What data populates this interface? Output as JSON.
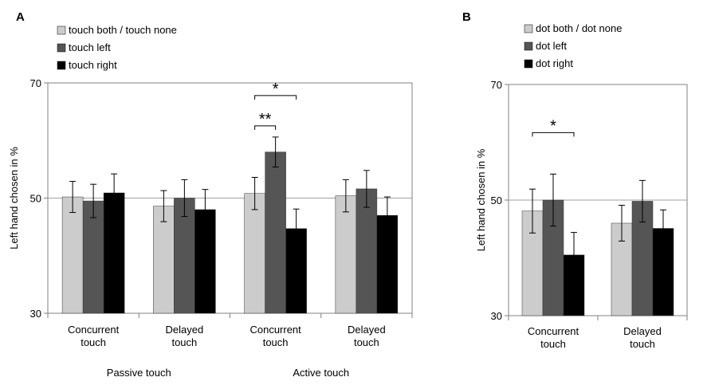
{
  "chart_data": [
    {
      "panel": "A",
      "type": "bar",
      "ylabel": "Left hand chosen in %",
      "ylim": [
        30,
        70
      ],
      "yticks": [
        30,
        50,
        70
      ],
      "reference_line": 50,
      "legend": [
        {
          "label": "touch both / touch none",
          "color": "#cccccc"
        },
        {
          "label": "touch left",
          "color": "#555555"
        },
        {
          "label": "touch right",
          "color": "#000000"
        }
      ],
      "categories": [
        [
          "Concurrent",
          "touch"
        ],
        [
          "Delayed",
          "touch"
        ],
        [
          "Concurrent",
          "touch"
        ],
        [
          "Delayed",
          "touch"
        ]
      ],
      "groups": [
        "Passive touch",
        "Active touch"
      ],
      "series": [
        {
          "name": "touch both / touch none",
          "color": "#cccccc",
          "values": [
            50.2,
            48.6,
            50.8,
            50.4
          ],
          "errors": [
            2.7,
            2.7,
            2.8,
            2.8
          ]
        },
        {
          "name": "touch left",
          "color": "#555555",
          "values": [
            49.5,
            50.0,
            58.0,
            51.6
          ],
          "errors": [
            2.9,
            3.2,
            2.6,
            3.2
          ]
        },
        {
          "name": "touch right",
          "color": "#000000",
          "values": [
            50.9,
            48.0,
            44.7,
            47.0
          ],
          "errors": [
            3.3,
            3.5,
            3.4,
            3.2
          ]
        }
      ],
      "significance": [
        {
          "label": "**",
          "category": 2,
          "from": 0,
          "to": 1
        },
        {
          "label": "*",
          "category": 2,
          "from": 0,
          "to": 2
        }
      ]
    },
    {
      "panel": "B",
      "type": "bar",
      "ylabel": "Left hand chosen in %",
      "ylim": [
        30,
        70
      ],
      "yticks": [
        30,
        50,
        70
      ],
      "reference_line": 50,
      "legend": [
        {
          "label": "dot both / dot none",
          "color": "#cccccc"
        },
        {
          "label": "dot left",
          "color": "#555555"
        },
        {
          "label": "dot right",
          "color": "#000000"
        }
      ],
      "categories": [
        [
          "Concurrent",
          "touch"
        ],
        [
          "Delayed",
          "touch"
        ]
      ],
      "groups": [],
      "series": [
        {
          "name": "dot both / dot none",
          "color": "#cccccc",
          "values": [
            48.1,
            46.0
          ],
          "errors": [
            3.8,
            3.1
          ]
        },
        {
          "name": "dot left",
          "color": "#555555",
          "values": [
            50.0,
            49.8
          ],
          "errors": [
            4.5,
            3.6
          ]
        },
        {
          "name": "dot right",
          "color": "#000000",
          "values": [
            40.5,
            45.1
          ],
          "errors": [
            3.9,
            3.2
          ]
        }
      ],
      "significance": [
        {
          "label": "*",
          "category": 0,
          "from": 0,
          "to": 2
        }
      ]
    }
  ]
}
